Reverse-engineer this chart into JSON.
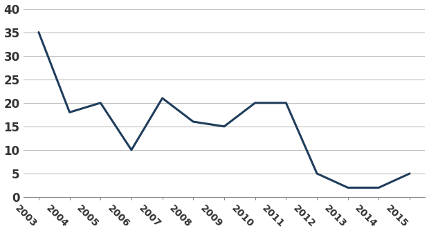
{
  "years": [
    2003,
    2004,
    2005,
    2006,
    2007,
    2008,
    2009,
    2010,
    2011,
    2012,
    2013,
    2014,
    2015
  ],
  "values": [
    35,
    18,
    20,
    10,
    21,
    16,
    15,
    20,
    20,
    5,
    2,
    2,
    5
  ],
  "line_color": "#1f3d5c",
  "line_width": 2.2,
  "ylim": [
    0,
    40
  ],
  "yticks": [
    0,
    5,
    10,
    15,
    20,
    25,
    30,
    35,
    40
  ],
  "grid_color": "#c0c0c0",
  "grid_linewidth": 0.8,
  "background_color": "#ffffff",
  "tick_label_fontsize": 10,
  "xlabel_rotation": -45,
  "ylabel_fontsize": 12
}
